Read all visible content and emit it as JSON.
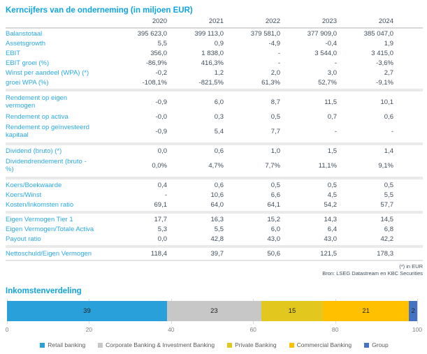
{
  "accent_color": "#0FA5E3",
  "text_color": "#3F4D5A",
  "table": {
    "title": "Kerncijfers van de onderneming (in miljoen EUR)",
    "years": [
      "2020",
      "2021",
      "2022",
      "2023",
      "2024"
    ],
    "sections": [
      {
        "rows": [
          {
            "label": "Balanstotaal",
            "values": [
              "395 623,0",
              "399 113,0",
              "379 581,0",
              "377 909,0",
              "385 047,0"
            ]
          },
          {
            "label": "Assetsgrowth",
            "values": [
              "5,5",
              "0,9",
              "-4,9",
              "-0,4",
              "1,9"
            ]
          },
          {
            "label": "EBIT",
            "values": [
              "356,0",
              "1 838,0",
              "-",
              "3 544,0",
              "3 415,0"
            ]
          },
          {
            "label": "EBIT groei (%)",
            "values": [
              "-86,9%",
              "416,3%",
              "-",
              "-",
              "-3,6%"
            ]
          },
          {
            "label": "Winst per aandeel (WPA) (*)",
            "values": [
              "-0,2",
              "1,2",
              "2,0",
              "3,0",
              "2,7"
            ]
          },
          {
            "label": "groei WPA (%)",
            "values": [
              "-108,1%",
              "-821,5%",
              "61,3%",
              "52,7%",
              "-9,1%"
            ]
          }
        ]
      },
      {
        "rows": [
          {
            "label": "Rendement op eigen\nvermogen",
            "values": [
              "-0,9",
              "6,0",
              "8,7",
              "11,5",
              "10,1"
            ]
          },
          {
            "label": "Rendement op activa",
            "values": [
              "-0,0",
              "0,3",
              "0,5",
              "0,7",
              "0,6"
            ]
          },
          {
            "label": "Rendement op geïnvesteerd\nkapitaal",
            "values": [
              "-0,9",
              "5,4",
              "7,7",
              "-",
              "-"
            ]
          }
        ]
      },
      {
        "rows": [
          {
            "label": "Dividend (bruto) (*)",
            "values": [
              "0,0",
              "0,6",
              "1,0",
              "1,5",
              "1,4"
            ]
          },
          {
            "label": "Dividendrendement (bruto -\n%)",
            "values": [
              "0,0%",
              "4,7%",
              "7,7%",
              "11,1%",
              "9,1%"
            ]
          }
        ]
      },
      {
        "rows": [
          {
            "label": "Koers/Boekwaarde",
            "values": [
              "0,4",
              "0,6",
              "0,5",
              "0,5",
              "0,5"
            ]
          },
          {
            "label": "Koers/Winst",
            "values": [
              "-",
              "10,6",
              "6,6",
              "4,5",
              "5,5"
            ]
          },
          {
            "label": "Kosten/Inkomsten ratio",
            "values": [
              "69,1",
              "64,0",
              "64,1",
              "54,2",
              "57,7"
            ]
          }
        ]
      },
      {
        "rows": [
          {
            "label": "Eigen Vermogen Tier 1",
            "values": [
              "17,7",
              "16,3",
              "15,2",
              "14,3",
              "14,5"
            ]
          },
          {
            "label": "Eigen Vermogen/Totale Activa",
            "values": [
              "5,3",
              "5,5",
              "6,0",
              "6,4",
              "6,8"
            ]
          },
          {
            "label": "Payout ratio",
            "values": [
              "0,0",
              "42,8",
              "43,0",
              "43,0",
              "42,2"
            ]
          }
        ]
      },
      {
        "rows": [
          {
            "label": "Nettoschuld/Eigen Vermogen",
            "values": [
              "118,4",
              "39,7",
              "50,6",
              "121,5",
              "178,3"
            ]
          }
        ]
      }
    ],
    "footnotes": [
      "(*) in EUR",
      "Bron: LSEG Datastream en KBC Securities"
    ]
  },
  "chart_data": {
    "type": "bar",
    "stacked": true,
    "orientation": "horizontal",
    "title": "Inkomstenverdeling",
    "xlabel": "",
    "ylabel": "",
    "xlim": [
      0,
      100
    ],
    "xticks": [
      0,
      20,
      40,
      60,
      80,
      100
    ],
    "grid": true,
    "legend_position": "bottom",
    "categories": [
      "Inkomstenverdeling"
    ],
    "series": [
      {
        "name": "Retail banking",
        "values": [
          39
        ],
        "color": "#2AA0DB"
      },
      {
        "name": "Corporate Banking & Investment Banking",
        "values": [
          23
        ],
        "color": "#C7C7C7"
      },
      {
        "name": "Private Banking",
        "values": [
          15
        ],
        "color": "#E2C71E"
      },
      {
        "name": "Commercial Banking",
        "values": [
          21
        ],
        "color": "#FFC000"
      },
      {
        "name": "Group",
        "values": [
          2
        ],
        "color": "#4472C4"
      }
    ]
  }
}
